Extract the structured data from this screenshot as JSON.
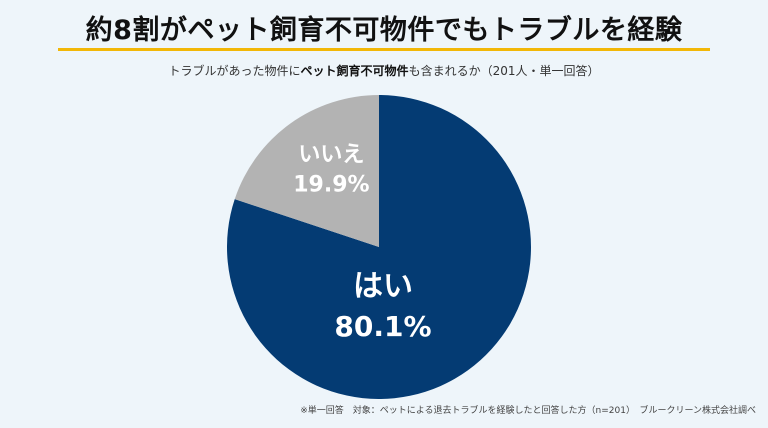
{
  "title": "約8割がペット飼育不可物件でもトラブルを経験",
  "subtitle": {
    "prefix": "トラブルがあった物件に",
    "emphasis": "ペット飼育不可物件",
    "suffix": "も含まれるか（201人・単一回答）"
  },
  "footnote": "※単一回答　対象：ペットによる退去トラブルを経験したと回答した方（n=201）　ブルークリーン株式会社調べ",
  "chart_data": {
    "type": "pie",
    "slices": [
      {
        "label": "はい",
        "value": 80.1,
        "display": "80.1%",
        "color": "#043b73"
      },
      {
        "label": "いいえ",
        "value": 19.9,
        "display": "19.9%",
        "color": "#b3b3b3"
      }
    ],
    "start": "12 o'clock",
    "direction": "clockwise"
  }
}
